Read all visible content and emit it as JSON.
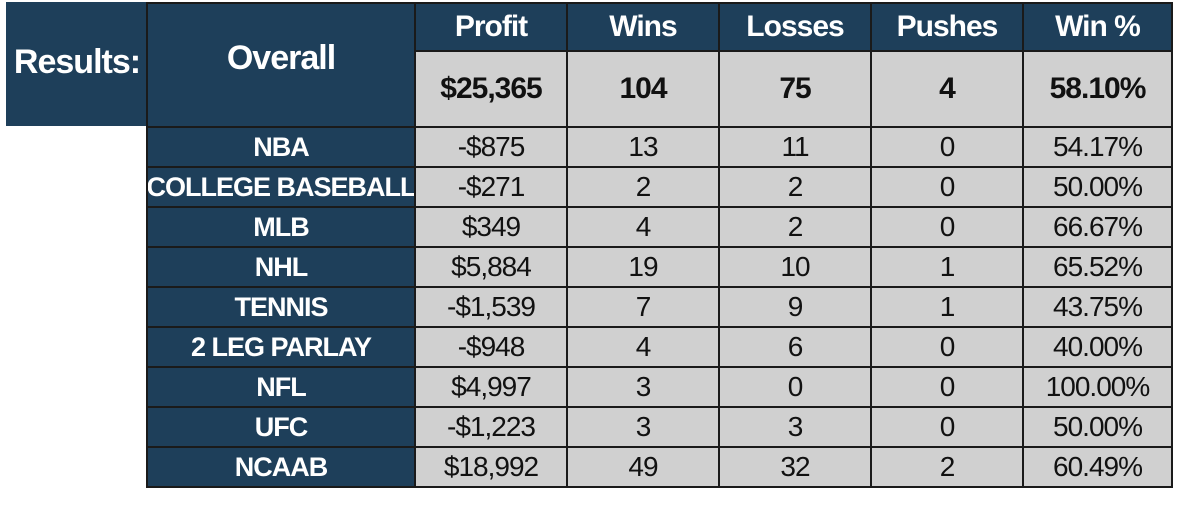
{
  "results_label": "Results:",
  "overall_label": "Overall",
  "headers": [
    "Profit",
    "Wins",
    "Losses",
    "Pushes",
    "Win %"
  ],
  "overall": {
    "profit": "$25,365",
    "wins": "104",
    "losses": "75",
    "pushes": "4",
    "win_pct": "58.10%"
  },
  "rows": [
    {
      "sport": "NBA",
      "profit": "-$875",
      "wins": "13",
      "losses": "11",
      "pushes": "0",
      "win_pct": "54.17%"
    },
    {
      "sport": "COLLEGE BASEBALL",
      "profit": "-$271",
      "wins": "2",
      "losses": "2",
      "pushes": "0",
      "win_pct": "50.00%"
    },
    {
      "sport": "MLB",
      "profit": "$349",
      "wins": "4",
      "losses": "2",
      "pushes": "0",
      "win_pct": "66.67%"
    },
    {
      "sport": "NHL",
      "profit": "$5,884",
      "wins": "19",
      "losses": "10",
      "pushes": "1",
      "win_pct": "65.52%"
    },
    {
      "sport": "TENNIS",
      "profit": "-$1,539",
      "wins": "7",
      "losses": "9",
      "pushes": "1",
      "win_pct": "43.75%"
    },
    {
      "sport": "2 LEG PARLAY",
      "profit": "-$948",
      "wins": "4",
      "losses": "6",
      "pushes": "0",
      "win_pct": "40.00%"
    },
    {
      "sport": "NFL",
      "profit": "$4,997",
      "wins": "3",
      "losses": "0",
      "pushes": "0",
      "win_pct": "100.00%"
    },
    {
      "sport": "UFC",
      "profit": "-$1,223",
      "wins": "3",
      "losses": "3",
      "pushes": "0",
      "win_pct": "50.00%"
    },
    {
      "sport": "NCAAB",
      "profit": "$18,992",
      "wins": "49",
      "losses": "32",
      "pushes": "2",
      "win_pct": "60.49%"
    }
  ],
  "colors": {
    "header_bg": "#1e3f5a",
    "cell_bg": "#d0d0d0",
    "border": "#1a1a1a"
  }
}
